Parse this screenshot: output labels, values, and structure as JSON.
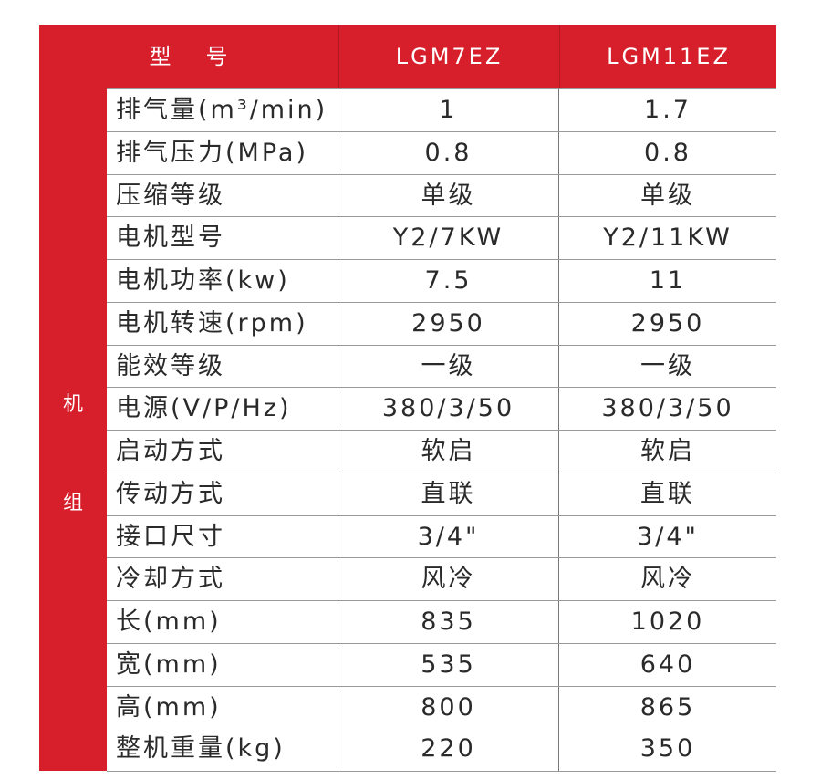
{
  "header": {
    "label": "型号",
    "models": [
      "LGM7EZ",
      "LGM11EZ"
    ]
  },
  "group_label": [
    "机",
    "组"
  ],
  "rows": [
    {
      "label": "排气量(m³/min)",
      "values": [
        "1",
        "1.7"
      ]
    },
    {
      "label": "排气压力(MPa)",
      "values": [
        "0.8",
        "0.8"
      ]
    },
    {
      "label": "压缩等级",
      "values": [
        "单级",
        "单级"
      ]
    },
    {
      "label": "电机型号",
      "values": [
        "Y2/7KW",
        "Y2/11KW"
      ]
    },
    {
      "label": "电机功率(kw)",
      "values": [
        "7.5",
        "11"
      ]
    },
    {
      "label": "电机转速(rpm)",
      "values": [
        "2950",
        "2950"
      ]
    },
    {
      "label": "能效等级",
      "values": [
        "一级",
        "一级"
      ]
    },
    {
      "label": "电源(V/P/Hz)",
      "values": [
        "380/3/50",
        "380/3/50"
      ]
    },
    {
      "label": "启动方式",
      "values": [
        "软启",
        "软启"
      ]
    },
    {
      "label": "传动方式",
      "values": [
        "直联",
        "直联"
      ]
    },
    {
      "label": "接口尺寸",
      "values": [
        "3/4\"",
        "3/4\""
      ]
    },
    {
      "label": "冷却方式",
      "values": [
        "风冷",
        "风冷"
      ]
    },
    {
      "label": "长(mm)",
      "values": [
        "835",
        "1020"
      ]
    },
    {
      "label": "宽(mm)",
      "values": [
        "535",
        "640"
      ]
    },
    {
      "label": "高(mm)",
      "values": [
        "800",
        "865"
      ]
    },
    {
      "label": "整机重量(kg)",
      "values": [
        "220",
        "350"
      ]
    }
  ],
  "colors": {
    "accent": "#d61f2b",
    "text": "#2a2a2a",
    "grid": "#999999"
  }
}
